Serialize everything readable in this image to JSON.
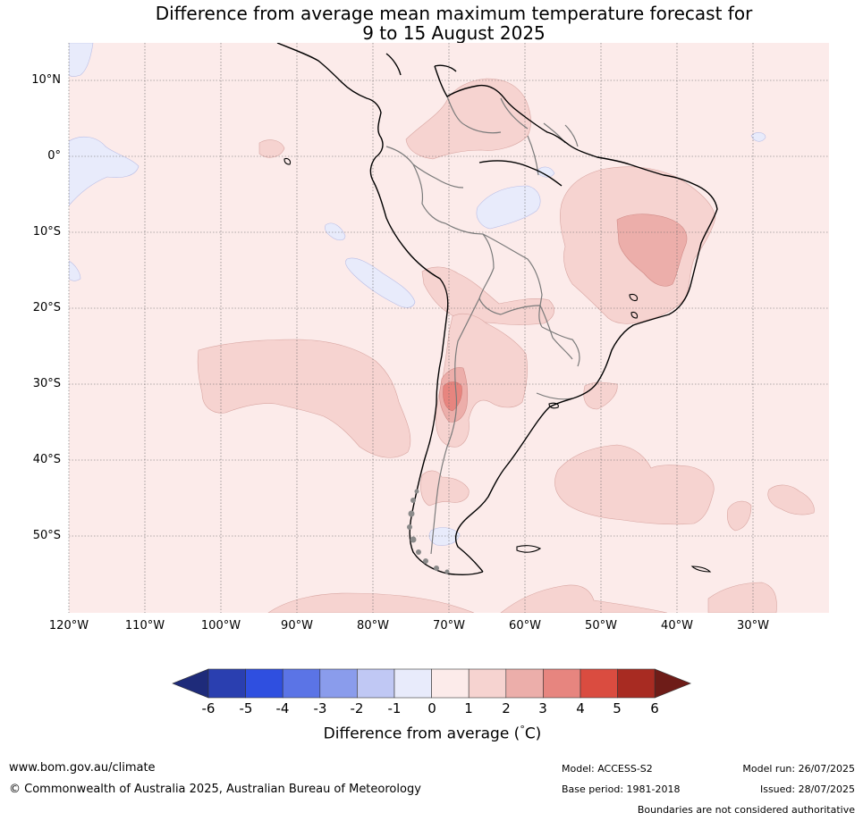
{
  "title_line1": "Difference from average mean maximum temperature forecast for",
  "title_line2": "9 to 15 August 2025",
  "lat_ticks": [
    "10°N",
    "0°",
    "10°S",
    "20°S",
    "30°S",
    "40°S",
    "50°S"
  ],
  "lon_ticks": [
    "120°W",
    "110°W",
    "100°W",
    "90°W",
    "80°W",
    "70°W",
    "60°W",
    "50°W",
    "40°W",
    "30°W"
  ],
  "colorbar": {
    "labels": [
      "-6",
      "-5",
      "-4",
      "-3",
      "-2",
      "-1",
      "0",
      "1",
      "2",
      "3",
      "4",
      "5",
      "6"
    ],
    "colors": [
      "#1e2b7a",
      "#2a3fb0",
      "#2f4fe0",
      "#5b74e6",
      "#8a9cec",
      "#c0c8f4",
      "#e8ebfb",
      "#fcebea",
      "#f6d3d0",
      "#ecaeaa",
      "#e7857f",
      "#da4c40",
      "#a82b22",
      "#6e1c18"
    ],
    "title": "Difference from average (°C)",
    "title_main": "Difference from average (",
    "title_deg": "°",
    "title_end": "C)"
  },
  "footer": {
    "url": "www.bom.gov.au/climate",
    "copyright": "© Commonwealth of Australia 2025, Australian Bureau of Meteorology",
    "model": "Model: ACCESS-S2",
    "base_period": "Base period: 1981-2018",
    "model_run": "Model run: 26/07/2025",
    "issued": "Issued: 28/07/2025",
    "disclaimer": "Boundaries are not considered authoritative"
  }
}
